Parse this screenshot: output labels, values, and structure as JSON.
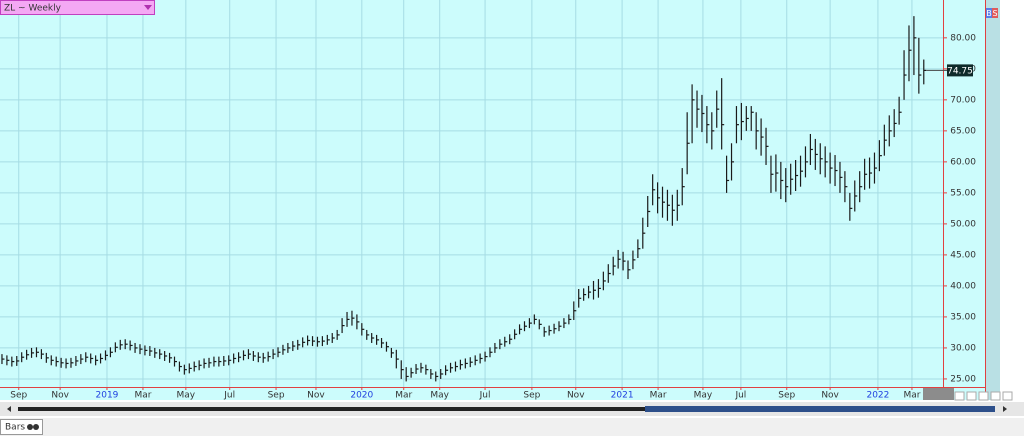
{
  "chart_data": {
    "type": "ohlc",
    "title": "ZL ~ Weekly",
    "ylim": [
      23.7,
      86.1
    ],
    "yticks": [
      {
        "value": 25,
        "label": "25.00"
      },
      {
        "value": 30,
        "label": "30.00"
      },
      {
        "value": 35,
        "label": "35.00"
      },
      {
        "value": 40,
        "label": "40.00"
      },
      {
        "value": 45,
        "label": "45.00"
      },
      {
        "value": 50,
        "label": "50.00"
      },
      {
        "value": 55,
        "label": "55.00"
      },
      {
        "value": 60,
        "label": "60.00"
      },
      {
        "value": 65,
        "label": "65.00"
      },
      {
        "value": 70,
        "label": "70.00"
      },
      {
        "value": 75,
        "label": "75.00"
      },
      {
        "value": 80,
        "label": "80.00"
      }
    ],
    "xlim": [
      -0.4,
      190.9
    ],
    "xticks": [
      {
        "value": 3.4,
        "label": "Sep"
      },
      {
        "value": 11.8,
        "label": "Nov"
      },
      {
        "value": 21.3,
        "label": "2019"
      },
      {
        "value": 28.6,
        "label": "Mar"
      },
      {
        "value": 37.3,
        "label": "May"
      },
      {
        "value": 46.2,
        "label": "Jul"
      },
      {
        "value": 55.6,
        "label": "Sep"
      },
      {
        "value": 63.7,
        "label": "Nov"
      },
      {
        "value": 73.0,
        "label": "2020"
      },
      {
        "value": 81.5,
        "label": "Mar"
      },
      {
        "value": 88.8,
        "label": "May"
      },
      {
        "value": 98.0,
        "label": "Jul"
      },
      {
        "value": 107.5,
        "label": "Sep"
      },
      {
        "value": 116.4,
        "label": "Nov"
      },
      {
        "value": 125.8,
        "label": "2021"
      },
      {
        "value": 133.1,
        "label": "Mar"
      },
      {
        "value": 142.2,
        "label": "May"
      },
      {
        "value": 149.9,
        "label": "Jul"
      },
      {
        "value": 159.2,
        "label": "Sep"
      },
      {
        "value": 168.0,
        "label": "Nov"
      },
      {
        "value": 177.7,
        "label": "2022"
      },
      {
        "value": 184.6,
        "label": "Mar"
      }
    ],
    "grid": true,
    "color": "#1a1a1a",
    "high": [
      29.0,
      28.8,
      28.6,
      28.7,
      29.3,
      29.7,
      30.0,
      30.1,
      29.8,
      29.2,
      28.8,
      28.6,
      28.4,
      28.3,
      28.4,
      28.7,
      29.0,
      29.3,
      29.1,
      28.8,
      29.1,
      29.6,
      30.1,
      30.9,
      31.3,
      31.4,
      31.2,
      30.8,
      30.6,
      30.4,
      30.3,
      30.0,
      29.8,
      29.5,
      29.2,
      28.6,
      27.8,
      27.3,
      27.5,
      27.8,
      28.0,
      28.3,
      28.4,
      28.6,
      28.6,
      28.7,
      28.8,
      29.1,
      29.3,
      29.6,
      29.8,
      29.5,
      29.3,
      29.2,
      29.4,
      29.8,
      30.1,
      30.5,
      30.8,
      31.1,
      31.3,
      31.7,
      32.0,
      31.9,
      31.8,
      31.9,
      32.1,
      32.4,
      32.9,
      34.8,
      35.8,
      36.0,
      35.4,
      34.0,
      32.9,
      32.4,
      32.1,
      31.6,
      31.0,
      30.0,
      29.7,
      28.0,
      26.9,
      26.8,
      27.4,
      27.6,
      27.3,
      26.6,
      26.2,
      26.6,
      27.2,
      27.6,
      27.8,
      28.1,
      28.3,
      28.5,
      28.8,
      29.1,
      29.4,
      30.1,
      30.8,
      31.4,
      31.8,
      32.2,
      33.0,
      33.8,
      34.3,
      34.8,
      35.4,
      34.6,
      33.4,
      33.6,
      33.9,
      34.3,
      34.8,
      35.4,
      37.5,
      39.5,
      39.6,
      40.0,
      40.8,
      41.1,
      42.3,
      43.5,
      44.7,
      45.8,
      45.5,
      44.1,
      45.7,
      47.5,
      51.0,
      54.5,
      58.0,
      56.7,
      56.0,
      55.5,
      54.7,
      55.5,
      59.0,
      68.0,
      72.5,
      71.5,
      70.8,
      69.0,
      68.0,
      71.5,
      73.5,
      61.0,
      63.0,
      69.0,
      69.5,
      69.0,
      69.0,
      68.0,
      67.0,
      65.5,
      61.0,
      61.2,
      60.0,
      59.0,
      59.7,
      60.3,
      61.0,
      62.5,
      64.5,
      63.7,
      63.0,
      62.5,
      61.5,
      61.1,
      60.0,
      58.5,
      55.0,
      57.0,
      58.5,
      60.5,
      60.7,
      61.5,
      63.5,
      66.0,
      67.5,
      68.5,
      70.5,
      78.0,
      82.0,
      83.5,
      80.0,
      76.5
    ],
    "low": [
      27.4,
      27.2,
      27.0,
      27.1,
      27.7,
      28.1,
      28.4,
      28.5,
      28.2,
      27.6,
      27.2,
      27.0,
      26.8,
      26.7,
      26.8,
      27.1,
      27.4,
      27.7,
      27.5,
      27.2,
      27.5,
      28.0,
      28.5,
      29.3,
      29.7,
      29.8,
      29.6,
      29.2,
      29.0,
      28.8,
      28.7,
      28.4,
      28.2,
      27.9,
      27.6,
      27.0,
      26.2,
      25.7,
      25.9,
      26.2,
      26.4,
      26.7,
      26.8,
      27.0,
      27.0,
      27.1,
      27.2,
      27.5,
      27.7,
      28.0,
      28.2,
      27.9,
      27.7,
      27.6,
      27.8,
      28.2,
      28.5,
      28.9,
      29.2,
      29.5,
      29.7,
      30.1,
      30.4,
      30.3,
      30.2,
      30.3,
      30.5,
      30.8,
      31.3,
      32.4,
      33.4,
      33.6,
      33.0,
      32.0,
      31.3,
      30.8,
      30.5,
      30.0,
      29.4,
      28.4,
      26.7,
      25.0,
      24.6,
      25.2,
      25.8,
      26.0,
      25.7,
      25.0,
      24.6,
      25.0,
      25.6,
      26.0,
      26.2,
      26.5,
      26.7,
      26.9,
      27.2,
      27.5,
      27.8,
      28.5,
      29.2,
      29.8,
      30.2,
      30.6,
      31.4,
      32.2,
      32.7,
      33.2,
      33.8,
      33.0,
      31.8,
      32.0,
      32.3,
      32.7,
      33.2,
      33.8,
      34.5,
      36.5,
      37.6,
      38.0,
      37.8,
      38.1,
      39.3,
      40.5,
      41.7,
      42.8,
      42.5,
      41.1,
      42.7,
      44.5,
      46.0,
      49.5,
      53.0,
      51.7,
      51.0,
      50.5,
      49.7,
      50.5,
      53.0,
      58.0,
      63.0,
      65.5,
      64.8,
      63.0,
      62.0,
      65.5,
      62.0,
      55.0,
      57.0,
      63.0,
      63.5,
      65.0,
      65.0,
      62.0,
      61.0,
      59.5,
      55.0,
      55.2,
      54.0,
      53.5,
      54.7,
      55.3,
      56.0,
      57.5,
      59.5,
      58.7,
      58.0,
      57.5,
      56.5,
      56.1,
      55.0,
      53.5,
      50.5,
      52.0,
      53.5,
      55.5,
      55.7,
      56.5,
      58.5,
      61.0,
      62.5,
      64.0,
      66.0,
      70.0,
      73.0,
      74.0,
      71.0,
      72.5
    ],
    "close": [
      28.2,
      28.0,
      27.8,
      27.9,
      28.5,
      28.9,
      29.2,
      29.3,
      29.0,
      28.4,
      28.0,
      27.8,
      27.6,
      27.5,
      27.6,
      27.9,
      28.2,
      28.5,
      28.3,
      28.0,
      28.3,
      28.8,
      29.3,
      30.1,
      30.5,
      30.6,
      30.4,
      30.0,
      29.8,
      29.6,
      29.5,
      29.2,
      29.0,
      28.7,
      28.4,
      27.8,
      27.0,
      26.5,
      26.7,
      27.0,
      27.2,
      27.5,
      27.6,
      27.8,
      27.8,
      27.9,
      28.0,
      28.3,
      28.5,
      28.8,
      29.0,
      28.7,
      28.5,
      28.4,
      28.6,
      29.0,
      29.3,
      29.7,
      30.0,
      30.3,
      30.5,
      30.9,
      31.2,
      31.1,
      31.0,
      31.1,
      31.3,
      31.6,
      32.1,
      33.6,
      34.6,
      34.8,
      34.2,
      33.0,
      32.1,
      31.6,
      31.3,
      30.8,
      30.2,
      29.2,
      28.2,
      26.5,
      25.4,
      26.0,
      26.6,
      26.8,
      26.5,
      25.8,
      25.4,
      25.8,
      26.4,
      26.8,
      27.0,
      27.3,
      27.5,
      27.7,
      28.0,
      28.3,
      28.6,
      29.3,
      30.0,
      30.6,
      31.0,
      31.4,
      32.2,
      33.0,
      33.5,
      34.0,
      34.6,
      33.8,
      32.6,
      32.8,
      33.1,
      33.5,
      34.0,
      34.6,
      36.0,
      38.0,
      38.6,
      39.0,
      39.3,
      39.6,
      40.8,
      42.0,
      43.2,
      44.3,
      44.0,
      42.6,
      44.2,
      46.0,
      48.5,
      52.0,
      55.5,
      54.2,
      53.5,
      53.0,
      52.2,
      53.0,
      56.0,
      63.0,
      70.0,
      68.5,
      67.8,
      66.0,
      65.0,
      68.5,
      66.0,
      57.0,
      60.0,
      66.0,
      66.5,
      67.0,
      68.0,
      65.0,
      64.0,
      62.5,
      58.0,
      58.2,
      57.0,
      56.0,
      57.2,
      57.8,
      58.5,
      60.0,
      62.0,
      61.2,
      60.5,
      60.0,
      59.0,
      58.6,
      57.5,
      56.0,
      52.5,
      54.5,
      56.0,
      58.0,
      58.2,
      59.0,
      61.0,
      63.5,
      65.0,
      66.2,
      68.0,
      74.0,
      78.0,
      80.0,
      74.0,
      74.75
    ]
  },
  "ui": {
    "buttons": [
      "B",
      "S"
    ],
    "tab": "Bars"
  }
}
